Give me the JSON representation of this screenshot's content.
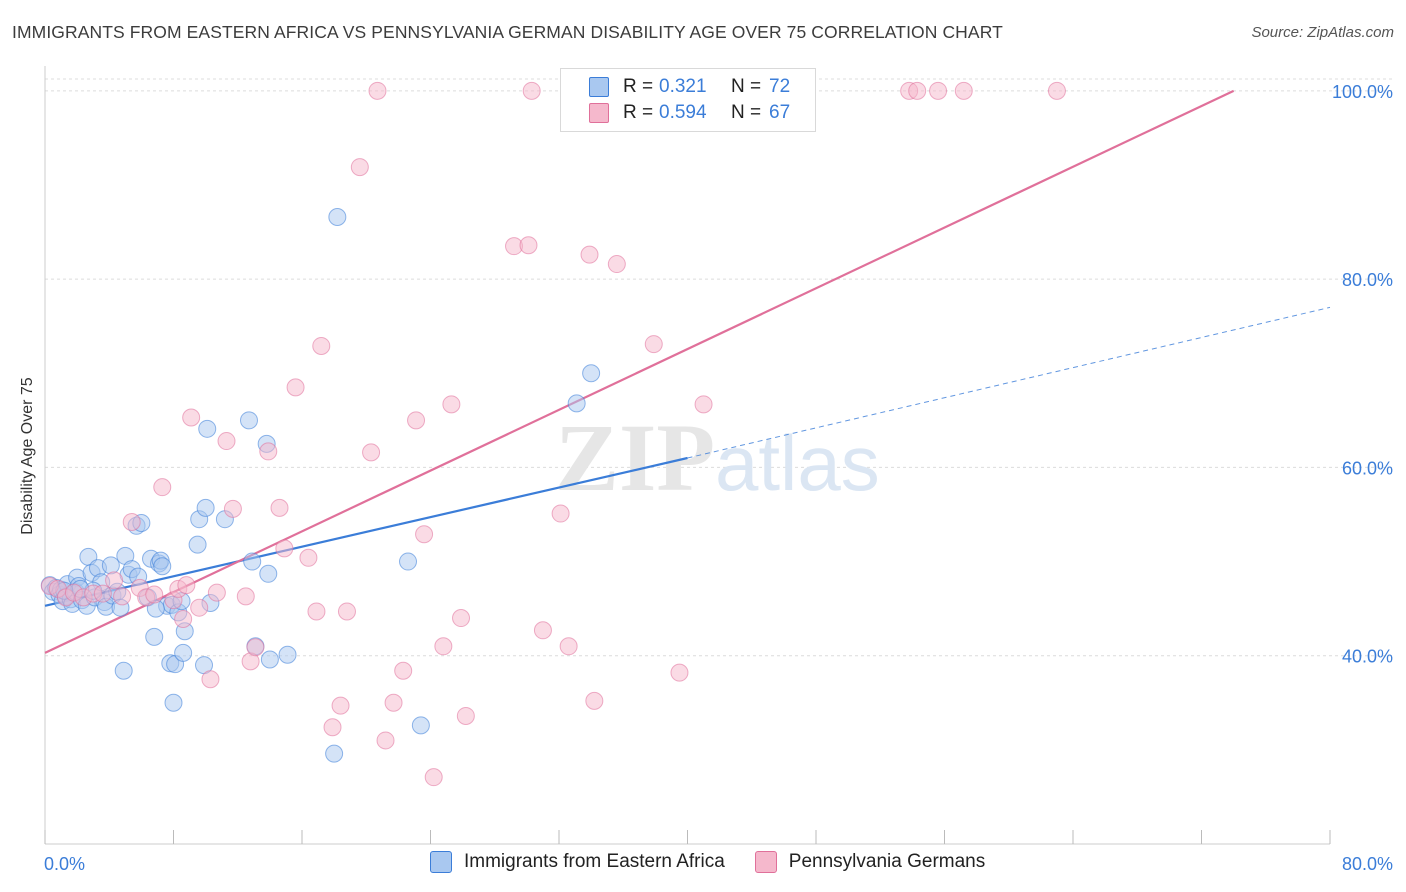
{
  "title": "IMMIGRANTS FROM EASTERN AFRICA VS PENNSYLVANIA GERMAN DISABILITY AGE OVER 75 CORRELATION CHART",
  "source": "Source: ZipAtlas.com",
  "watermark": "ZIPatlas",
  "colors": {
    "blue": "#3b7dd8",
    "blue_fill": "#a9c8f0",
    "pink": "#e0709a",
    "pink_fill": "#f5b8cc",
    "grid": "#dcdcdc",
    "tick_label": "#3b7dd8"
  },
  "legend": {
    "rows": [
      {
        "r_label": "R =",
        "r_value": "0.321",
        "n_label": "N =",
        "n_value": "72",
        "color": "#a9c8f0",
        "border": "#3b7dd8"
      },
      {
        "r_label": "R =",
        "r_value": "0.594",
        "n_label": "N =",
        "n_value": "67",
        "color": "#f5b8cc",
        "border": "#e0709a"
      }
    ]
  },
  "bottom_legend": [
    {
      "label": "Immigrants from Eastern Africa",
      "color": "#a9c8f0",
      "border": "#3b7dd8"
    },
    {
      "label": "Pennsylvania Germans",
      "color": "#f5b8cc",
      "border": "#e0709a"
    }
  ],
  "chart_data": {
    "type": "scatter",
    "title": "IMMIGRANTS FROM EASTERN AFRICA VS PENNSYLVANIA GERMAN DISABILITY AGE OVER 75 CORRELATION CHART",
    "xlabel": "",
    "ylabel": "Disability Age Over 75",
    "xlim": [
      0,
      80
    ],
    "ylim": [
      20,
      102
    ],
    "x_tick_labels": [
      "0.0%",
      "80.0%"
    ],
    "y_ticks": [
      40,
      60,
      80,
      100
    ],
    "y_tick_labels": [
      "40.0%",
      "60.0%",
      "80.0%",
      "100.0%"
    ],
    "grid": "horizontal dashed",
    "series": [
      {
        "name": "Immigrants from Eastern Africa",
        "color": "#3b7dd8",
        "points": [
          [
            0.3,
            47.5
          ],
          [
            0.5,
            46.8
          ],
          [
            0.7,
            47.2
          ],
          [
            0.9,
            46.5
          ],
          [
            1.0,
            47.0
          ],
          [
            1.1,
            45.8
          ],
          [
            1.3,
            46.3
          ],
          [
            1.4,
            47.6
          ],
          [
            1.6,
            46.0
          ],
          [
            1.7,
            45.5
          ],
          [
            1.9,
            46.8
          ],
          [
            2.0,
            48.3
          ],
          [
            2.1,
            47.4
          ],
          [
            2.3,
            45.9
          ],
          [
            2.6,
            45.3
          ],
          [
            2.7,
            50.5
          ],
          [
            2.9,
            48.8
          ],
          [
            3.1,
            46.2
          ],
          [
            3.3,
            49.3
          ],
          [
            3.5,
            47.8
          ],
          [
            3.7,
            45.7
          ],
          [
            3.8,
            45.2
          ],
          [
            4.1,
            49.6
          ],
          [
            4.2,
            46.4
          ],
          [
            4.5,
            46.8
          ],
          [
            4.7,
            45.1
          ],
          [
            5.0,
            50.6
          ],
          [
            5.2,
            48.6
          ],
          [
            5.4,
            49.2
          ],
          [
            5.7,
            53.8
          ],
          [
            5.8,
            48.4
          ],
          [
            6.0,
            54.1
          ],
          [
            6.4,
            46.2
          ],
          [
            6.6,
            50.3
          ],
          [
            6.8,
            42.0
          ],
          [
            7.1,
            49.8
          ],
          [
            7.2,
            50.1
          ],
          [
            7.3,
            49.5
          ],
          [
            7.6,
            45.3
          ],
          [
            7.8,
            39.2
          ],
          [
            7.9,
            45.4
          ],
          [
            8.0,
            35.0
          ],
          [
            8.1,
            39.1
          ],
          [
            8.3,
            44.6
          ],
          [
            8.5,
            45.8
          ],
          [
            8.7,
            42.6
          ],
          [
            9.5,
            51.8
          ],
          [
            9.6,
            54.5
          ],
          [
            9.9,
            39.0
          ],
          [
            10.0,
            55.7
          ],
          [
            10.1,
            64.1
          ],
          [
            10.3,
            45.6
          ],
          [
            11.2,
            54.5
          ],
          [
            12.7,
            65.0
          ],
          [
            12.9,
            50.0
          ],
          [
            13.1,
            41.0
          ],
          [
            13.8,
            62.5
          ],
          [
            13.9,
            48.7
          ],
          [
            14.0,
            39.6
          ],
          [
            15.1,
            40.1
          ],
          [
            4.9,
            38.4
          ],
          [
            6.9,
            45.0
          ],
          [
            8.6,
            40.3
          ],
          [
            18.2,
            86.6
          ],
          [
            18.0,
            29.6
          ],
          [
            22.6,
            50.0
          ],
          [
            23.4,
            32.6
          ],
          [
            33.1,
            66.8
          ],
          [
            34.0,
            70.0
          ],
          [
            3.0,
            46.9
          ],
          [
            2.2,
            47.1
          ],
          [
            1.2,
            46.9
          ]
        ],
        "trend": {
          "x0": 0,
          "y0": 45.3,
          "x1": 40,
          "y1": 61.0,
          "dashed_to_x": 80,
          "dashed_to_y": 77.0
        }
      },
      {
        "name": "Pennsylvania Germans",
        "color": "#e0709a",
        "points": [
          [
            0.3,
            47.4
          ],
          [
            0.8,
            47.1
          ],
          [
            1.3,
            46.2
          ],
          [
            1.8,
            46.7
          ],
          [
            2.4,
            46.2
          ],
          [
            3.0,
            46.6
          ],
          [
            3.6,
            46.6
          ],
          [
            4.3,
            48.0
          ],
          [
            4.8,
            46.3
          ],
          [
            5.4,
            54.2
          ],
          [
            5.9,
            47.2
          ],
          [
            6.3,
            46.2
          ],
          [
            6.8,
            46.5
          ],
          [
            7.3,
            57.9
          ],
          [
            8.0,
            45.9
          ],
          [
            8.3,
            47.1
          ],
          [
            8.6,
            43.9
          ],
          [
            8.8,
            47.5
          ],
          [
            9.1,
            65.3
          ],
          [
            9.6,
            45.1
          ],
          [
            10.3,
            37.5
          ],
          [
            10.7,
            46.7
          ],
          [
            11.3,
            62.8
          ],
          [
            11.7,
            55.6
          ],
          [
            12.5,
            46.3
          ],
          [
            12.8,
            39.4
          ],
          [
            13.1,
            40.9
          ],
          [
            13.9,
            61.7
          ],
          [
            14.6,
            55.7
          ],
          [
            14.9,
            51.4
          ],
          [
            15.6,
            68.5
          ],
          [
            16.4,
            50.4
          ],
          [
            16.9,
            44.7
          ],
          [
            17.2,
            72.9
          ],
          [
            17.9,
            32.4
          ],
          [
            18.4,
            34.7
          ],
          [
            18.8,
            44.7
          ],
          [
            19.6,
            91.9
          ],
          [
            20.3,
            61.6
          ],
          [
            20.7,
            100
          ],
          [
            21.2,
            31.0
          ],
          [
            21.7,
            35.0
          ],
          [
            22.3,
            38.4
          ],
          [
            23.1,
            65.0
          ],
          [
            23.6,
            52.9
          ],
          [
            24.2,
            27.1
          ],
          [
            24.8,
            41.0
          ],
          [
            25.3,
            66.7
          ],
          [
            25.9,
            44.0
          ],
          [
            26.2,
            33.6
          ],
          [
            29.2,
            83.5
          ],
          [
            30.1,
            83.6
          ],
          [
            30.3,
            100
          ],
          [
            31.0,
            42.7
          ],
          [
            32.1,
            55.1
          ],
          [
            32.6,
            41.0
          ],
          [
            33.9,
            82.6
          ],
          [
            34.2,
            35.2
          ],
          [
            35.6,
            81.6
          ],
          [
            37.9,
            73.1
          ],
          [
            39.5,
            38.2
          ],
          [
            41.0,
            66.7
          ],
          [
            53.8,
            100
          ],
          [
            54.3,
            100
          ],
          [
            55.6,
            100
          ],
          [
            57.2,
            100
          ],
          [
            63.0,
            100
          ]
        ],
        "trend": {
          "x0": 0,
          "y0": 40.3,
          "x1": 74,
          "y1": 100
        }
      }
    ]
  }
}
